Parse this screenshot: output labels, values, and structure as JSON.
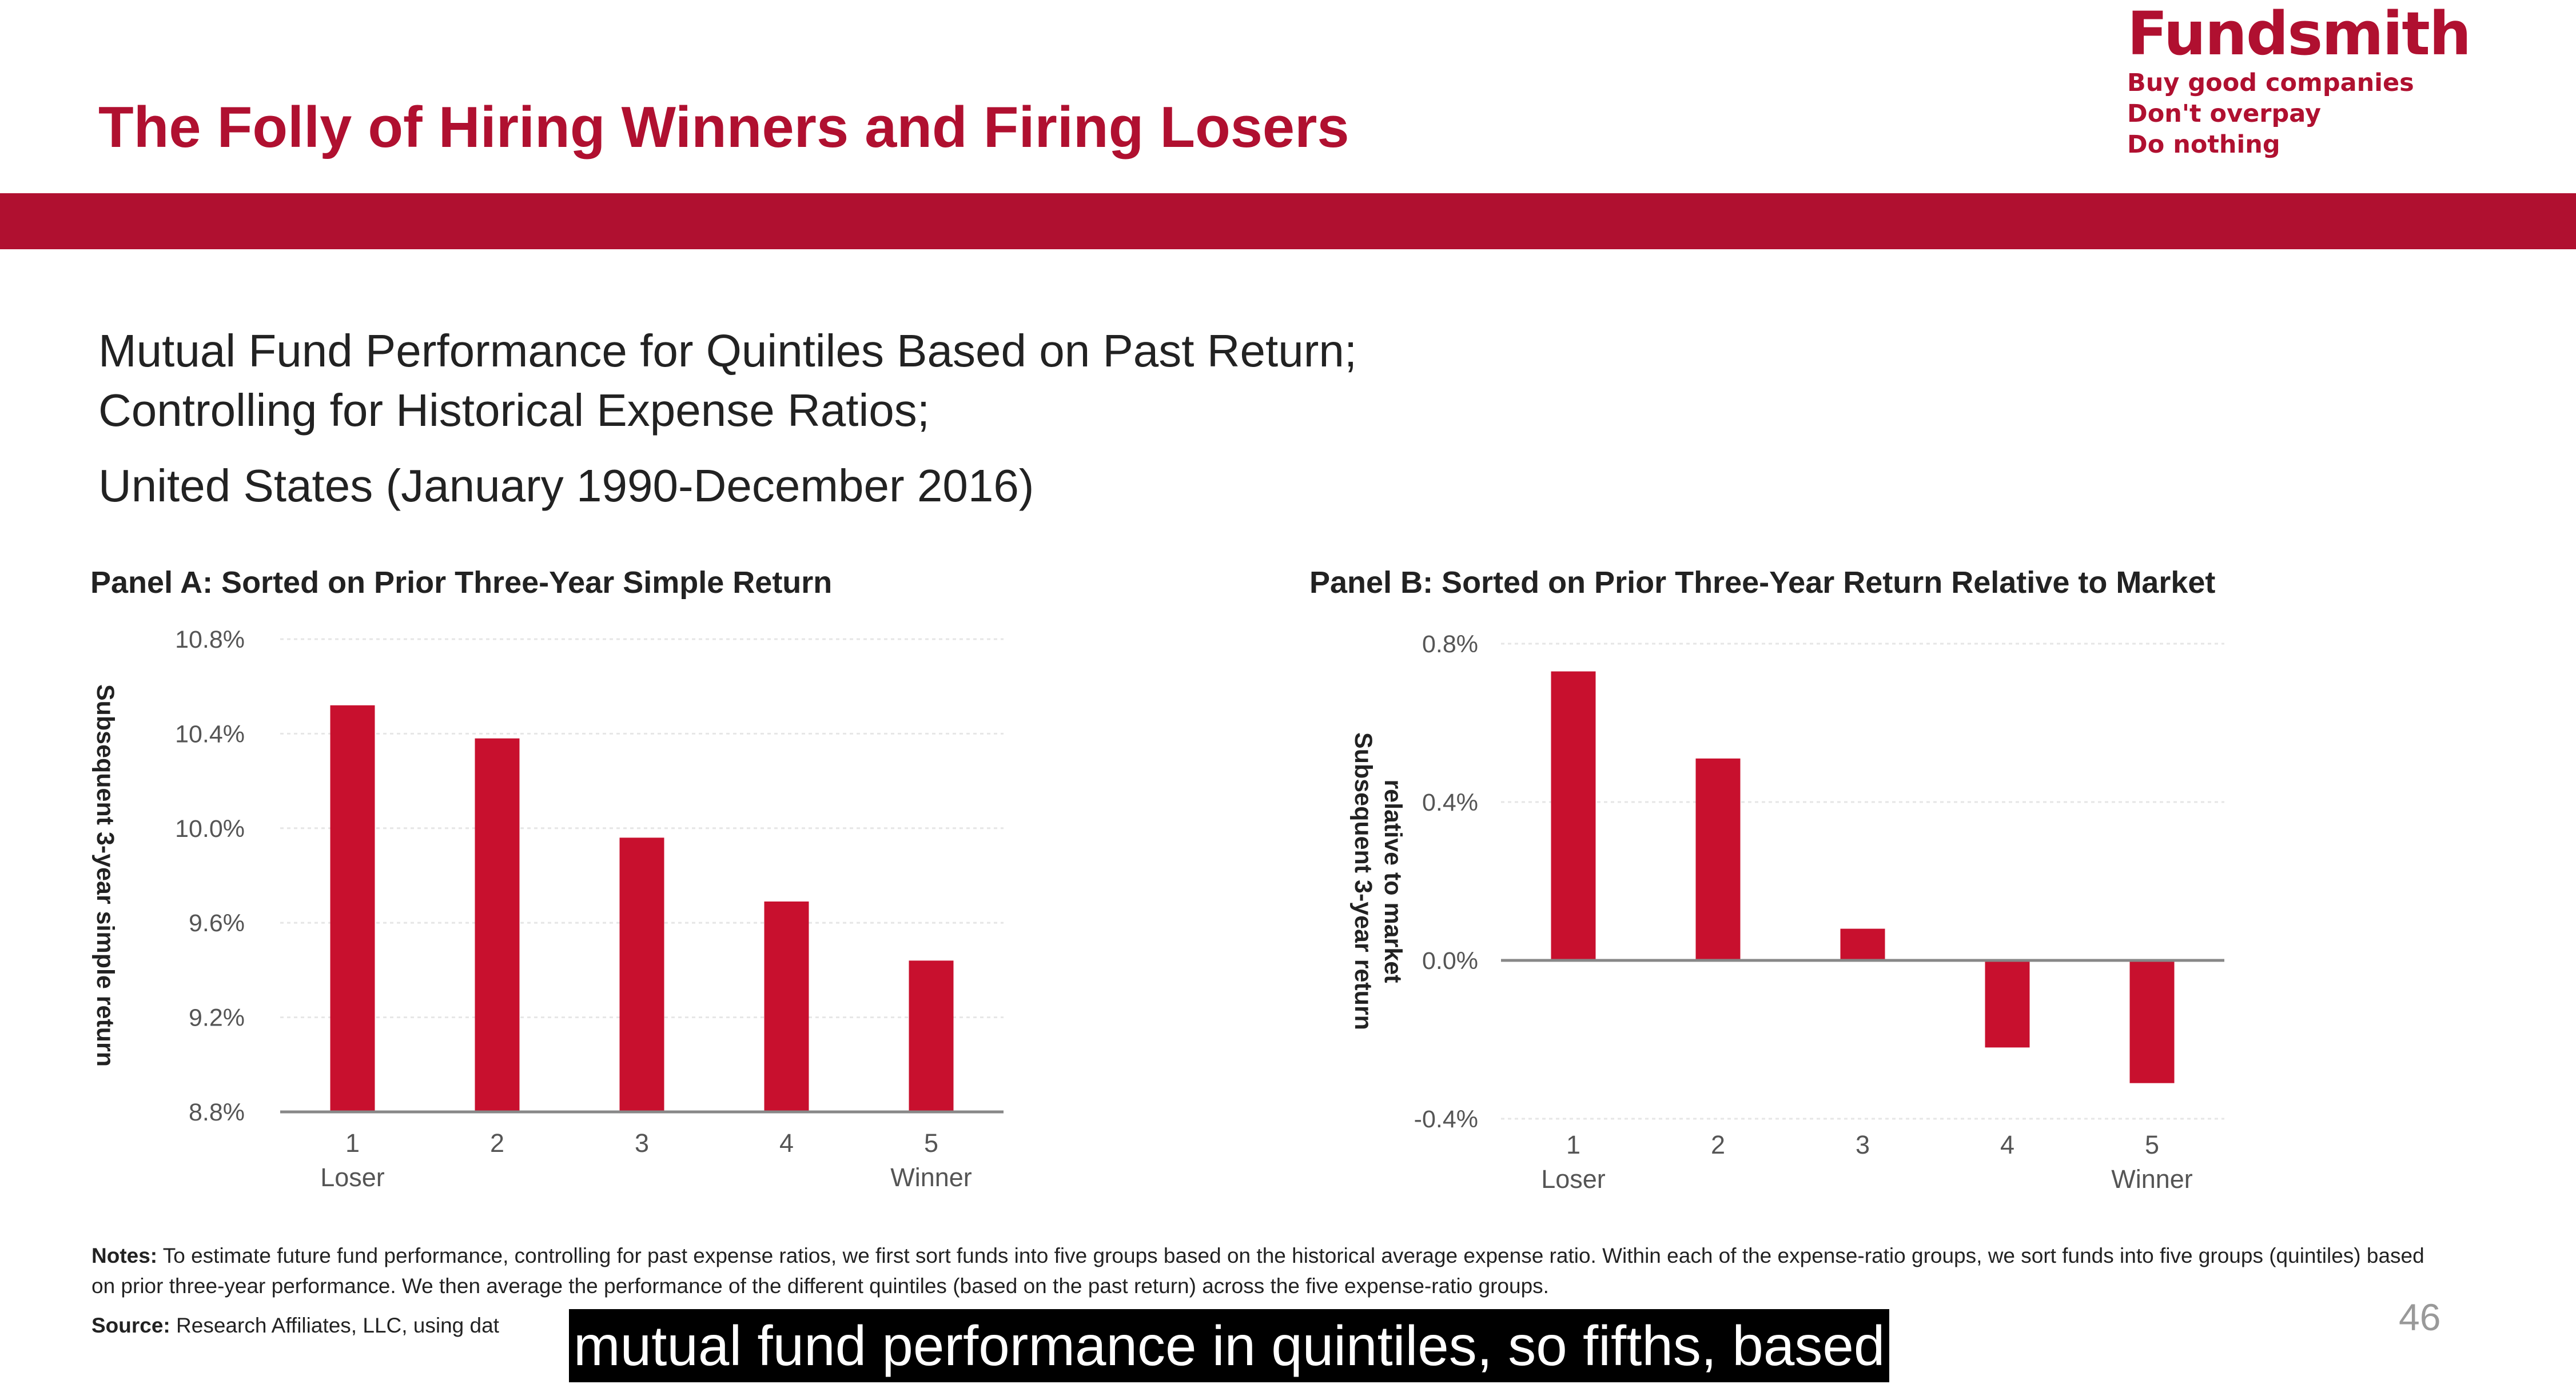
{
  "slide": {
    "title": "The Folly of Hiring Winners and Firing Losers",
    "subtitle_lines": [
      "Mutual Fund Performance for Quintiles Based on Past Return;",
      "Controlling for Historical Expense Ratios;",
      "United States (January 1990-December 2016)"
    ],
    "page_number": "46"
  },
  "logo": {
    "name": "Fundsmith",
    "taglines": [
      "Buy good companies",
      "Don't overpay",
      "Do nothing"
    ]
  },
  "colors": {
    "brand": "#b01030",
    "bar": "#c8102e",
    "axis": "#888888",
    "grid": "#e6e6e6"
  },
  "chart_data": [
    {
      "type": "bar",
      "title": "Panel A: Sorted on Prior Three-Year Simple Return",
      "ylabel": "Subsequent 3-year simple return",
      "xlabel": "",
      "categories": [
        {
          "number": "1",
          "label": "Loser"
        },
        {
          "number": "2",
          "label": ""
        },
        {
          "number": "3",
          "label": ""
        },
        {
          "number": "4",
          "label": ""
        },
        {
          "number": "5",
          "label": "Winner"
        }
      ],
      "values": [
        10.52,
        10.38,
        9.96,
        9.69,
        9.44
      ],
      "ylim": [
        8.8,
        10.8
      ],
      "yticks": [
        8.8,
        9.2,
        9.6,
        10.0,
        10.4,
        10.8
      ],
      "ytick_labels": [
        "8.8%",
        "9.2%",
        "9.6%",
        "10.0%",
        "10.4%",
        "10.8%"
      ],
      "grid": true
    },
    {
      "type": "bar",
      "title": "Panel B: Sorted on Prior Three-Year Return Relative to Market",
      "ylabel_lines": [
        "Subsequent 3-year return",
        "relative to market"
      ],
      "xlabel": "",
      "categories": [
        {
          "number": "1",
          "label": "Loser"
        },
        {
          "number": "2",
          "label": ""
        },
        {
          "number": "3",
          "label": ""
        },
        {
          "number": "4",
          "label": ""
        },
        {
          "number": "5",
          "label": "Winner"
        }
      ],
      "values": [
        0.73,
        0.51,
        0.08,
        -0.22,
        -0.31
      ],
      "ylim": [
        -0.4,
        0.8
      ],
      "yticks": [
        -0.4,
        0.0,
        0.4,
        0.8
      ],
      "ytick_labels": [
        "-0.4%",
        "0.0%",
        "0.4%",
        "0.8%"
      ],
      "grid": true
    }
  ],
  "notes": {
    "label": "Notes:",
    "text": " To estimate future fund performance, controlling for past expense ratios, we first sort funds into five groups based on the historical average expense ratio. Within each of the expense-ratio groups, we sort funds into five groups (quintiles) based on prior three-year performance. We then average the performance of the different quintiles (based on the past return) across the five expense-ratio groups."
  },
  "source": {
    "label": "Source:",
    "text": " Research Affiliates, LLC, using dat"
  },
  "caption": {
    "text": "mutual fund performance in quintiles, so fifths, based"
  }
}
